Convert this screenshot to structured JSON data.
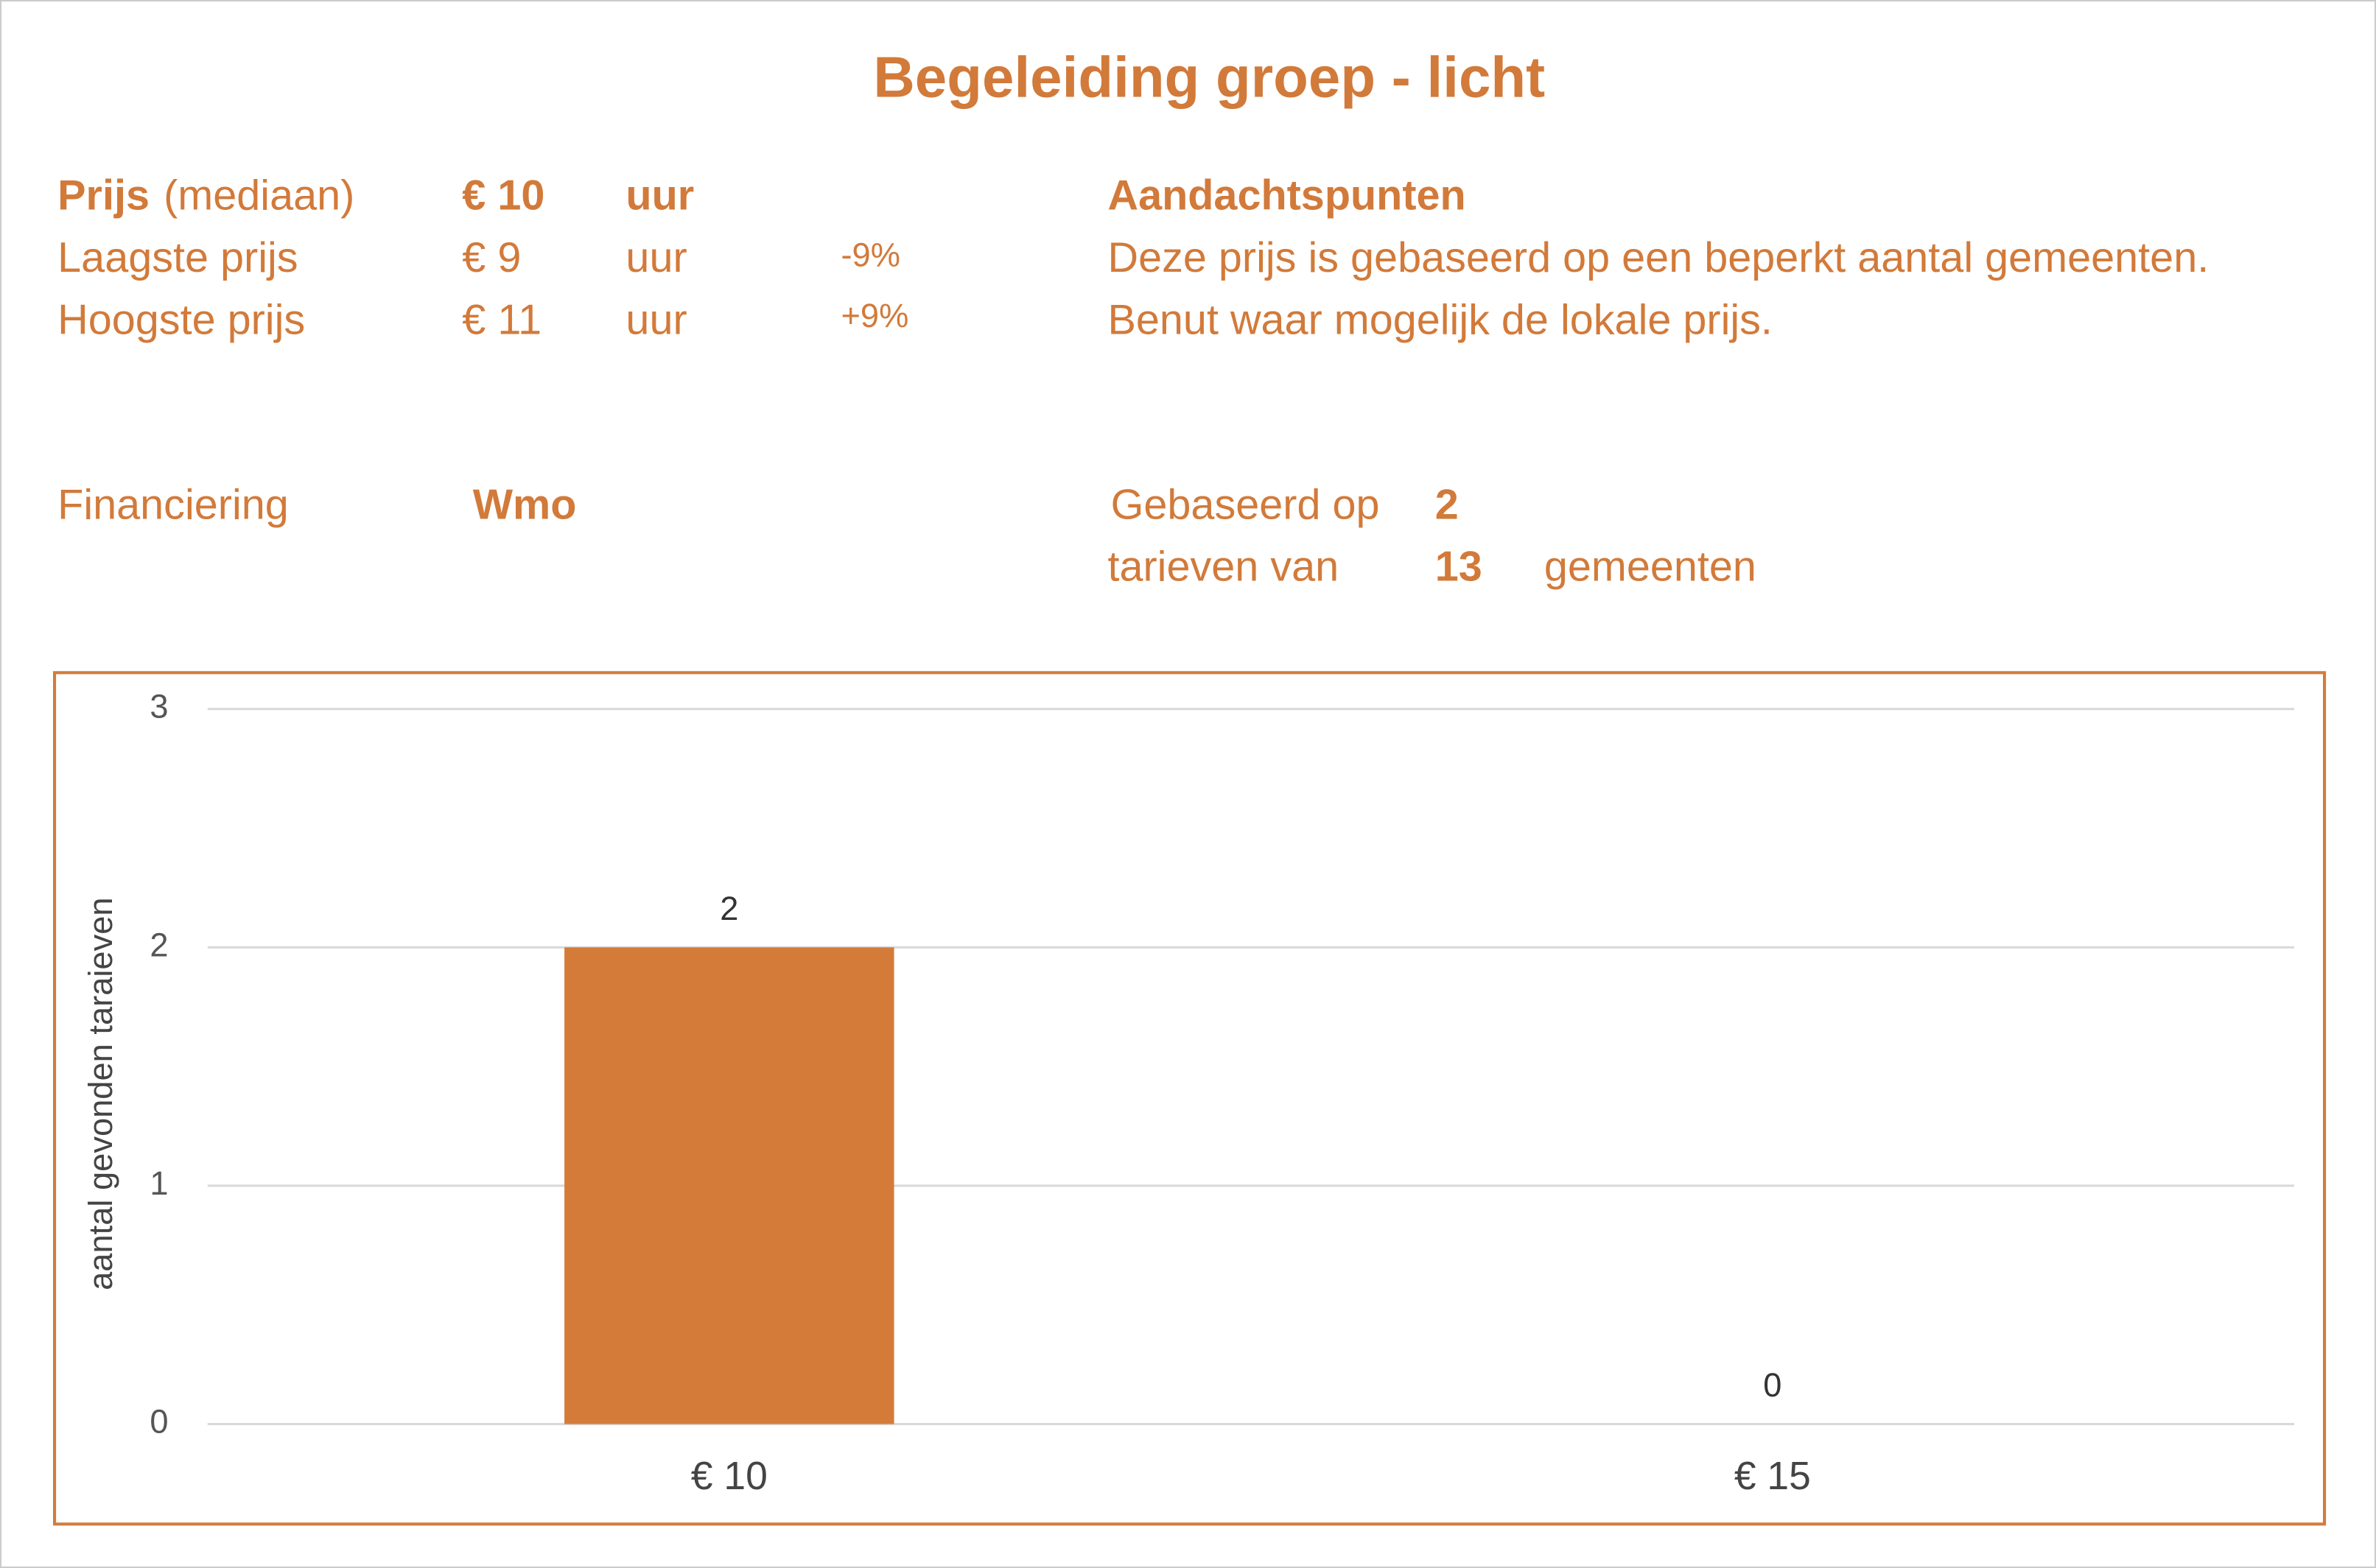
{
  "title": "Begeleiding groep - licht",
  "prices": {
    "rows": [
      {
        "label": "Prijs",
        "qualifier": "(mediaan)",
        "price": "€ 10",
        "unit": "uur"
      },
      {
        "label": "Laagste prijs",
        "price": "€ 9",
        "unit": "uur",
        "change": "-9%"
      },
      {
        "label": "Hoogste prijs",
        "price": "€ 11",
        "unit": "uur",
        "change": "+9%"
      }
    ]
  },
  "notes": {
    "heading": "Aandachtspunten",
    "lines": [
      "Deze prijs is gebaseerd op een beperkt aantal gemeenten.",
      "Benut waar mogelijk de lokale prijs."
    ]
  },
  "financing": {
    "label": "Financiering",
    "value": "Wmo"
  },
  "basis": {
    "line1": "Gebaseerd op",
    "count": "2",
    "line2": "tarieven van",
    "municipalities": "13",
    "unit": "gemeenten"
  },
  "chart_data": {
    "type": "bar",
    "y_label": "aantal gevonden taraieven",
    "categories": [
      "€ 10",
      "€ 15"
    ],
    "values": [
      2,
      0
    ],
    "color": "#d47b3a",
    "ylim": [
      0,
      3
    ],
    "yticks": [
      0,
      1,
      2,
      3
    ],
    "grid": true
  }
}
